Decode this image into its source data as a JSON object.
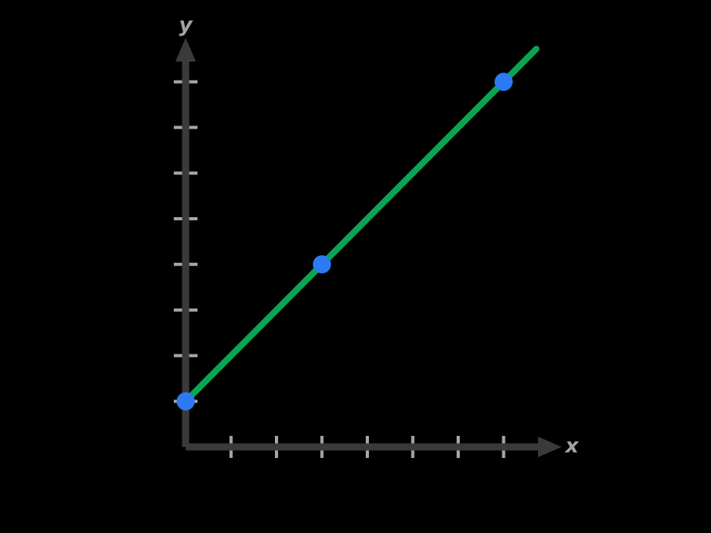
{
  "page": {
    "background_color": "#000000"
  },
  "chart_data": {
    "type": "line",
    "title": "",
    "xlabel": "x",
    "ylabel": "y",
    "equation": "y = x + 1",
    "slope": 1,
    "y_intercept": 1,
    "xlim": [
      0,
      8.2
    ],
    "ylim": [
      0,
      9
    ],
    "x_ticks": [
      1,
      2,
      3,
      4,
      5,
      6,
      7
    ],
    "y_ticks": [
      1,
      2,
      3,
      4,
      5,
      6,
      7,
      8
    ],
    "tick_labels_shown": false,
    "grid": false,
    "legend": false,
    "series": [
      {
        "name": "line-y-equals-x-plus-1",
        "x": [
          0,
          7.72
        ],
        "y": [
          1,
          8.72
        ],
        "color": "#09a551"
      }
    ],
    "points": [
      {
        "x": 0,
        "y": 1
      },
      {
        "x": 3,
        "y": 4
      },
      {
        "x": 7,
        "y": 8
      }
    ],
    "colors": {
      "line": "#09a551",
      "point": "#2d7bf2",
      "axis": "#3a3a3c",
      "tick": "#a6a6a6",
      "label": "#a2a2a2"
    }
  }
}
